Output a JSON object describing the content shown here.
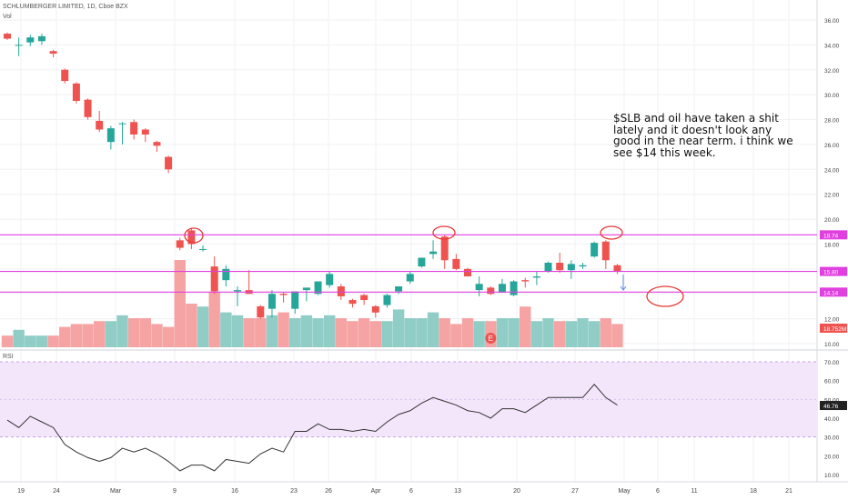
{
  "header": {
    "title": "SCHLUMBERGER LIMITED, 1D, Cboe BZX",
    "vol_label": "Vol",
    "rsi_label": "RSI"
  },
  "annotation": "$SLB and oil have taken a shit lately and it doesn't look any good in the near term. i think we see $14 this week.",
  "colors": {
    "up": "#26a69a",
    "down": "#ef5350",
    "vol_up": "#8fcdc6",
    "vol_down": "#f5a3a3",
    "hline": "#e040e0",
    "rsi_bg": "#f3e6fb",
    "circle": "#e53935"
  },
  "chart_data": [
    {
      "type": "candlestick",
      "ylim": [
        9.5,
        36.6
      ],
      "y_ticks": [
        "10.00",
        "12.00",
        "14.00",
        "16.00",
        "18.00",
        "20.00",
        "22.00",
        "24.00",
        "26.00",
        "28.00",
        "30.00",
        "32.00",
        "34.00",
        "36.00"
      ],
      "x_ticks": [
        "19",
        "24",
        "Mar",
        "9",
        "16",
        "23",
        "26",
        "Apr",
        "6",
        "13",
        "20",
        "27",
        "May",
        "6",
        "11",
        "18",
        "21"
      ],
      "price_labels": [
        "18.74",
        "15.80",
        "14.14",
        "18.752M"
      ],
      "horizontal_lines": [
        18.74,
        15.8,
        14.14
      ],
      "earnings_marker": "E",
      "candles": [
        {
          "o": 34.9,
          "h": 35.0,
          "l": 34.4,
          "c": 34.5
        },
        {
          "o": 34.0,
          "h": 34.6,
          "l": 33.1,
          "c": 34.0
        },
        {
          "o": 34.2,
          "h": 34.8,
          "l": 33.9,
          "c": 34.6
        },
        {
          "o": 34.3,
          "h": 34.9,
          "l": 34.0,
          "c": 34.7
        },
        {
          "o": 33.5,
          "h": 33.6,
          "l": 33.0,
          "c": 33.3
        },
        {
          "o": 32.0,
          "h": 32.1,
          "l": 30.9,
          "c": 31.1
        },
        {
          "o": 30.9,
          "h": 31.0,
          "l": 29.3,
          "c": 29.5
        },
        {
          "o": 29.6,
          "h": 29.7,
          "l": 28.0,
          "c": 28.2
        },
        {
          "o": 27.9,
          "h": 28.7,
          "l": 27.0,
          "c": 27.2
        },
        {
          "o": 26.2,
          "h": 27.5,
          "l": 25.6,
          "c": 27.3
        },
        {
          "o": 27.7,
          "h": 27.8,
          "l": 26.0,
          "c": 27.7
        },
        {
          "o": 27.8,
          "h": 28.0,
          "l": 26.4,
          "c": 26.8
        },
        {
          "o": 27.2,
          "h": 27.3,
          "l": 26.2,
          "c": 26.8
        },
        {
          "o": 26.2,
          "h": 26.3,
          "l": 25.4,
          "c": 25.9
        },
        {
          "o": 25.0,
          "h": 25.1,
          "l": 23.7,
          "c": 24.0
        },
        {
          "o": 18.3,
          "h": 18.5,
          "l": 17.5,
          "c": 17.7
        },
        {
          "o": 19.1,
          "h": 19.3,
          "l": 17.6,
          "c": 18.0
        },
        {
          "o": 17.6,
          "h": 17.9,
          "l": 17.4,
          "c": 17.6
        },
        {
          "o": 16.2,
          "h": 17.0,
          "l": 14.0,
          "c": 14.2
        },
        {
          "o": 15.1,
          "h": 16.3,
          "l": 14.6,
          "c": 16.0
        },
        {
          "o": 14.2,
          "h": 14.6,
          "l": 13.0,
          "c": 14.3
        },
        {
          "o": 14.3,
          "h": 15.9,
          "l": 14.0,
          "c": 14.0
        },
        {
          "o": 13.0,
          "h": 13.1,
          "l": 12.0,
          "c": 12.1
        },
        {
          "o": 12.8,
          "h": 14.3,
          "l": 12.1,
          "c": 14.0
        },
        {
          "o": 14.0,
          "h": 14.1,
          "l": 13.3,
          "c": 13.9
        },
        {
          "o": 12.8,
          "h": 14.1,
          "l": 12.4,
          "c": 14.2
        },
        {
          "o": 14.3,
          "h": 14.5,
          "l": 13.4,
          "c": 14.5
        },
        {
          "o": 14.0,
          "h": 15.0,
          "l": 13.9,
          "c": 15.0
        },
        {
          "o": 14.7,
          "h": 15.8,
          "l": 14.5,
          "c": 15.6
        },
        {
          "o": 14.6,
          "h": 14.8,
          "l": 13.5,
          "c": 13.8
        },
        {
          "o": 13.5,
          "h": 13.6,
          "l": 12.9,
          "c": 13.2
        },
        {
          "o": 13.9,
          "h": 14.0,
          "l": 13.1,
          "c": 13.5
        },
        {
          "o": 13.0,
          "h": 13.1,
          "l": 12.1,
          "c": 12.5
        },
        {
          "o": 13.1,
          "h": 14.0,
          "l": 12.9,
          "c": 13.9
        },
        {
          "o": 14.2,
          "h": 14.6,
          "l": 14.0,
          "c": 14.6
        },
        {
          "o": 15.0,
          "h": 15.8,
          "l": 14.8,
          "c": 15.6
        },
        {
          "o": 16.2,
          "h": 16.9,
          "l": 16.1,
          "c": 16.9
        },
        {
          "o": 17.2,
          "h": 18.3,
          "l": 16.8,
          "c": 17.4
        },
        {
          "o": 18.6,
          "h": 18.7,
          "l": 16.0,
          "c": 16.7
        },
        {
          "o": 16.8,
          "h": 17.2,
          "l": 15.9,
          "c": 16.0
        },
        {
          "o": 16.0,
          "h": 16.1,
          "l": 15.4,
          "c": 15.4
        },
        {
          "o": 14.3,
          "h": 15.4,
          "l": 13.8,
          "c": 14.8
        },
        {
          "o": 14.5,
          "h": 14.6,
          "l": 13.9,
          "c": 14.0
        },
        {
          "o": 14.1,
          "h": 15.2,
          "l": 14.1,
          "c": 14.8
        },
        {
          "o": 13.9,
          "h": 15.1,
          "l": 13.8,
          "c": 15.0
        },
        {
          "o": 15.1,
          "h": 15.3,
          "l": 14.5,
          "c": 15.0
        },
        {
          "o": 15.3,
          "h": 15.8,
          "l": 14.7,
          "c": 15.4
        },
        {
          "o": 15.8,
          "h": 16.6,
          "l": 15.7,
          "c": 16.5
        },
        {
          "o": 16.5,
          "h": 17.3,
          "l": 15.7,
          "c": 15.9
        },
        {
          "o": 15.9,
          "h": 16.7,
          "l": 15.2,
          "c": 16.4
        },
        {
          "o": 16.2,
          "h": 16.5,
          "l": 16.0,
          "c": 16.3
        },
        {
          "o": 17.0,
          "h": 18.2,
          "l": 16.9,
          "c": 18.1
        },
        {
          "o": 18.2,
          "h": 18.3,
          "l": 16.0,
          "c": 16.7
        },
        {
          "o": 16.3,
          "h": 16.4,
          "l": 15.6,
          "c": 15.8
        }
      ],
      "volume": [
        4,
        6,
        4,
        4,
        4,
        7,
        8,
        8,
        9,
        9,
        11,
        10,
        10,
        8,
        7,
        30,
        15,
        14,
        19,
        12,
        11,
        10,
        10,
        11,
        12,
        10,
        11,
        10,
        11,
        10,
        9,
        10,
        9,
        9,
        13,
        10,
        10,
        12,
        10,
        8,
        10,
        9,
        9,
        10,
        10,
        14,
        9,
        10,
        9,
        9,
        10,
        9,
        10,
        8
      ],
      "rsi_ylim": [
        6,
        73
      ],
      "rsi_ticks": [
        "10.00",
        "20.00",
        "30.00",
        "40.00",
        "50.00",
        "60.00",
        "70.00"
      ],
      "rsi_band": [
        30,
        70
      ],
      "rsi_value_label": "46.76",
      "rsi": [
        39,
        35,
        41,
        38,
        35,
        26,
        22,
        19,
        17,
        19,
        24,
        22,
        24,
        21,
        17,
        12,
        15,
        15,
        12,
        18,
        17,
        16,
        21,
        24,
        22,
        33,
        33,
        37,
        34,
        34,
        33,
        34,
        33,
        38,
        42,
        44,
        48,
        51,
        49,
        47,
        44,
        43,
        40,
        45,
        45,
        43,
        47,
        51,
        51,
        51,
        51,
        58,
        51,
        47
      ]
    }
  ]
}
